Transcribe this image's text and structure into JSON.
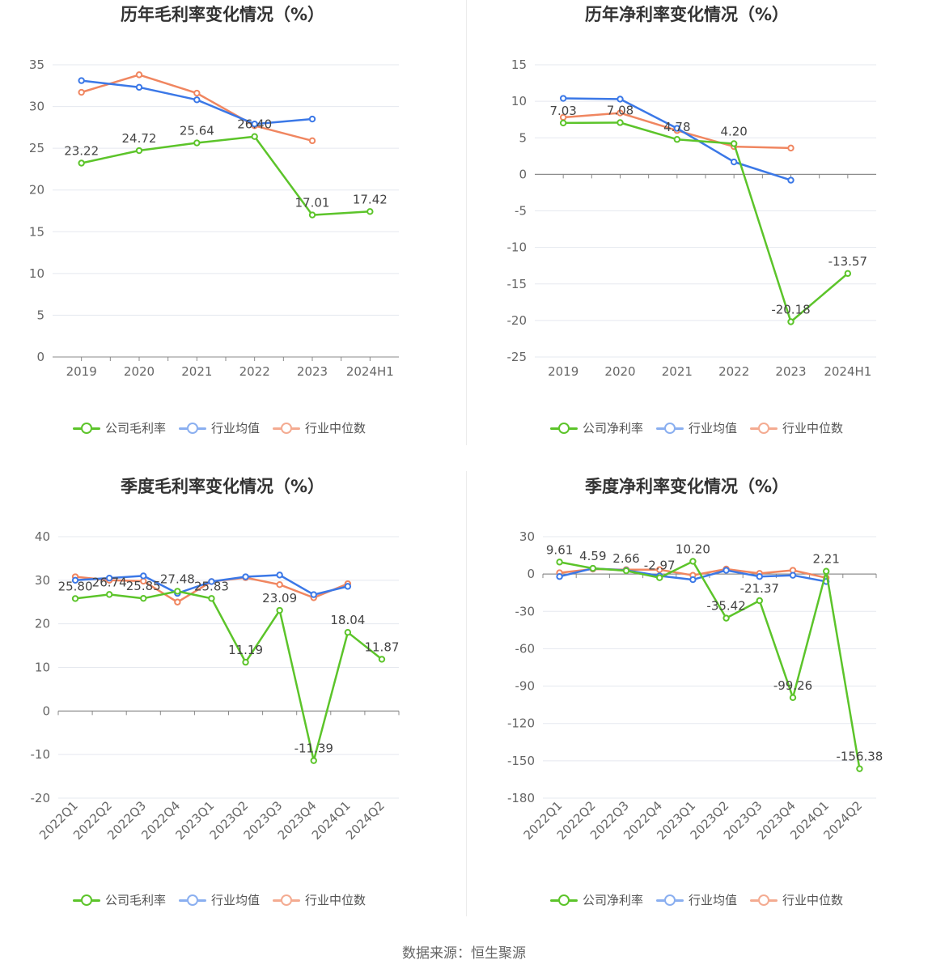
{
  "colors": {
    "company": "#5cc42a",
    "avg": "#3b78e7",
    "median": "#f08660",
    "grid": "#e5e8ef",
    "axis": "#999999"
  },
  "source_text": "数据来源：恒生聚源",
  "chart_data": [
    {
      "type": "line",
      "title": "历年毛利率变化情况（%）",
      "categories": [
        "2019",
        "2020",
        "2021",
        "2022",
        "2023",
        "2024H1"
      ],
      "ylim": [
        0,
        35
      ],
      "yticks": [
        0,
        5,
        10,
        15,
        20,
        25,
        30,
        35
      ],
      "rotate_x": false,
      "series": [
        {
          "name": "公司毛利率",
          "key": "company",
          "values": [
            23.22,
            24.72,
            25.64,
            26.4,
            17.01,
            17.42
          ],
          "labels": [
            "23.22",
            "24.72",
            "25.64",
            "26.40",
            "17.01",
            "17.42"
          ]
        },
        {
          "name": "行业均值",
          "key": "avg",
          "values": [
            33.1,
            32.3,
            30.8,
            27.9,
            28.5,
            null
          ]
        },
        {
          "name": "行业中位数",
          "key": "median",
          "values": [
            31.7,
            33.8,
            31.6,
            27.7,
            25.9,
            null
          ]
        }
      ]
    },
    {
      "type": "line",
      "title": "历年净利率变化情况（%）",
      "categories": [
        "2019",
        "2020",
        "2021",
        "2022",
        "2023",
        "2024H1"
      ],
      "ylim": [
        -25,
        15
      ],
      "yticks": [
        -25,
        -20,
        -15,
        -10,
        -5,
        0,
        5,
        10,
        15
      ],
      "rotate_x": false,
      "series": [
        {
          "name": "公司净利率",
          "key": "company",
          "values": [
            7.03,
            7.08,
            4.78,
            4.2,
            -20.18,
            -13.57
          ],
          "labels": [
            "7.03",
            "7.08",
            "4.78",
            "4.20",
            "-20.18",
            "-13.57"
          ]
        },
        {
          "name": "行业均值",
          "key": "avg",
          "values": [
            10.4,
            10.3,
            6.3,
            1.7,
            -0.8,
            null
          ]
        },
        {
          "name": "行业中位数",
          "key": "median",
          "values": [
            7.8,
            8.4,
            6.0,
            3.8,
            3.6,
            null
          ]
        }
      ]
    },
    {
      "type": "line",
      "title": "季度毛利率变化情况（%）",
      "categories": [
        "2022Q1",
        "2022Q2",
        "2022Q3",
        "2022Q4",
        "2023Q1",
        "2023Q2",
        "2023Q3",
        "2023Q4",
        "2024Q1",
        "2024Q2"
      ],
      "ylim": [
        -20,
        40
      ],
      "yticks": [
        -20,
        -10,
        0,
        10,
        20,
        30,
        40
      ],
      "rotate_x": true,
      "series": [
        {
          "name": "公司毛利率",
          "key": "company",
          "values": [
            25.8,
            26.74,
            25.85,
            27.48,
            25.83,
            11.19,
            23.09,
            -11.39,
            18.04,
            11.87
          ],
          "labels": [
            "25.80",
            "26.74",
            "25.85",
            "27.48",
            "25.83",
            "11.19",
            "23.09",
            "-11.39",
            "18.04",
            "11.87"
          ]
        },
        {
          "name": "行业均值",
          "key": "avg",
          "values": [
            30.0,
            30.5,
            31.0,
            27.0,
            29.7,
            30.8,
            31.2,
            26.7,
            28.6,
            null
          ]
        },
        {
          "name": "行业中位数",
          "key": "median",
          "values": [
            30.8,
            30.0,
            29.8,
            25.0,
            29.7,
            30.6,
            29.0,
            26.0,
            29.2,
            null
          ]
        }
      ]
    },
    {
      "type": "line",
      "title": "季度净利率变化情况（%）",
      "categories": [
        "2022Q1",
        "2022Q2",
        "2022Q3",
        "2022Q4",
        "2023Q1",
        "2023Q2",
        "2023Q3",
        "2023Q4",
        "2024Q1",
        "2024Q2"
      ],
      "ylim": [
        -180,
        30
      ],
      "yticks": [
        -180,
        -150,
        -120,
        -90,
        -60,
        -30,
        0,
        30
      ],
      "rotate_x": true,
      "series": [
        {
          "name": "公司净利率",
          "key": "company",
          "values": [
            9.61,
            4.59,
            2.66,
            -2.97,
            10.2,
            -35.42,
            -21.37,
            -99.26,
            2.21,
            -156.38
          ],
          "labels": [
            "9.61",
            "4.59",
            "2.66",
            "-2.97",
            "10.20",
            "-35.42",
            "-21.37",
            "-99.26",
            "2.21",
            "-156.38"
          ]
        },
        {
          "name": "行业均值",
          "key": "avg",
          "values": [
            -2.0,
            4.5,
            3.0,
            -1.5,
            -4.5,
            3.0,
            -2.0,
            -1.0,
            -6.0,
            null
          ]
        },
        {
          "name": "行业中位数",
          "key": "median",
          "values": [
            1.0,
            4.0,
            3.5,
            3.5,
            -1.0,
            4.0,
            0.5,
            3.0,
            -3.0,
            null
          ]
        }
      ]
    }
  ]
}
